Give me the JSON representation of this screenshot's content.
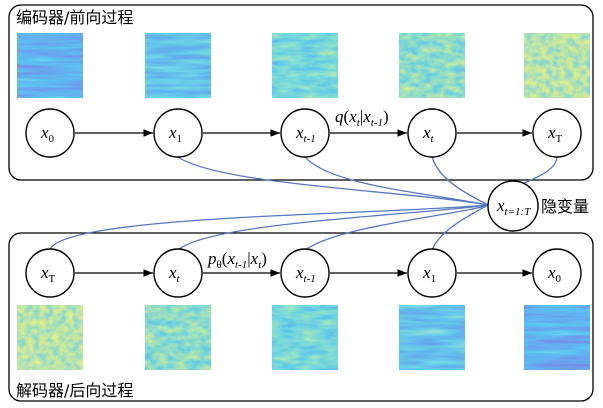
{
  "encoder": {
    "title": "编码器/前向过程",
    "nodes": [
      [
        "x",
        "0"
      ],
      [
        "x",
        "1"
      ],
      [
        "x",
        "t-1"
      ],
      [
        "x",
        "t"
      ],
      [
        "x",
        "T"
      ]
    ],
    "edge_label": [
      "q",
      "(",
      "x",
      "t",
      "|",
      "x",
      "t-1",
      ")"
    ]
  },
  "latent": {
    "symbol": [
      "x",
      "t=1:T"
    ],
    "label": "隐变量"
  },
  "decoder": {
    "title": "解码器/后向过程",
    "nodes": [
      [
        "x",
        "T"
      ],
      [
        "x",
        "t"
      ],
      [
        "x",
        "t-1"
      ],
      [
        "x",
        "1"
      ],
      [
        "x",
        "0"
      ]
    ],
    "edge_label": [
      "p",
      "θ",
      "(",
      "x",
      "t-1",
      "|",
      "x",
      "t",
      ")"
    ]
  }
}
